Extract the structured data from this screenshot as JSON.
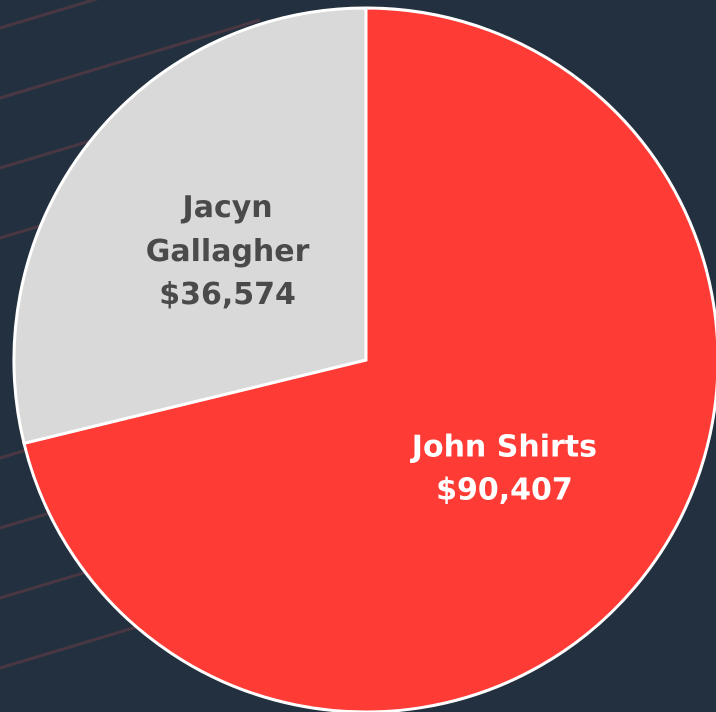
{
  "chart_data": {
    "type": "pie",
    "categories": [
      "John Shirts",
      "Jacyn Gallagher"
    ],
    "values": [
      90407,
      36574
    ],
    "value_labels": [
      "$90,407",
      "$36,574"
    ],
    "colors": [
      "#ff3b36",
      "#d9d9d9"
    ],
    "label_colors": [
      "#ffffff",
      "#4a4a4a"
    ]
  }
}
